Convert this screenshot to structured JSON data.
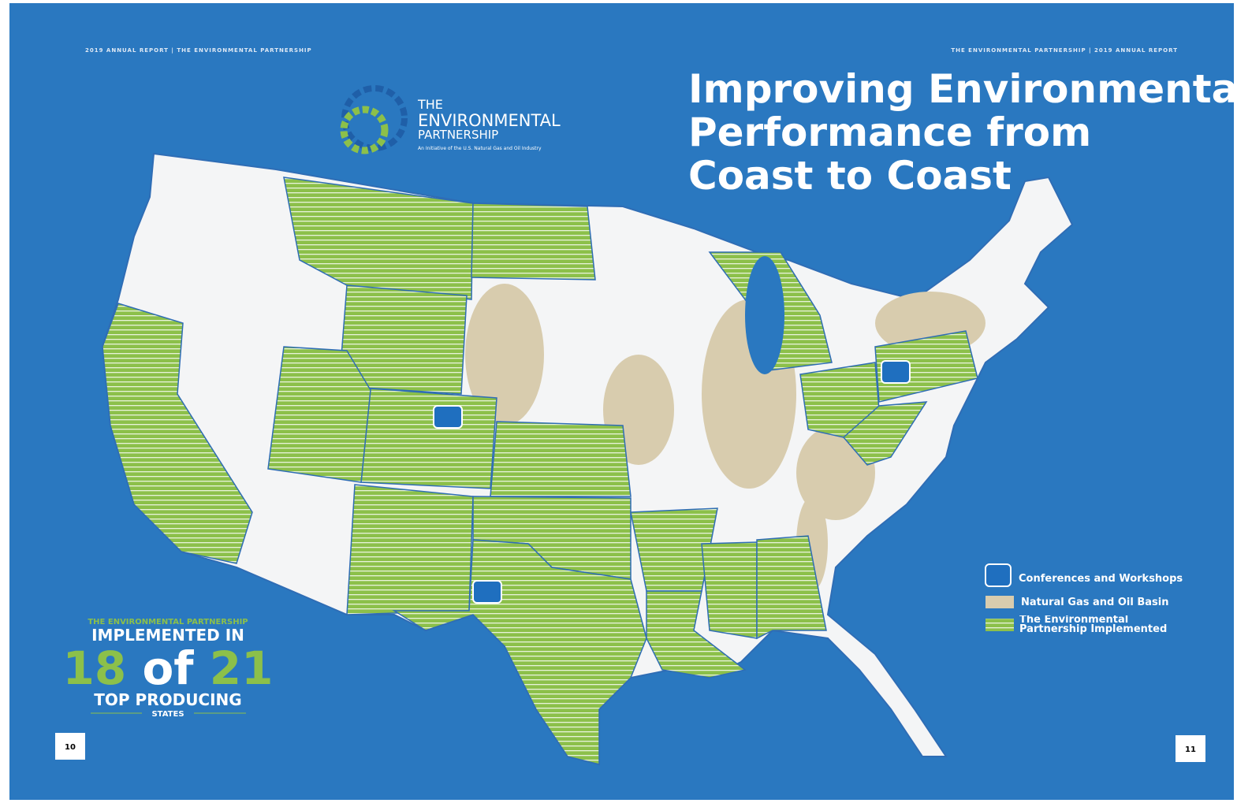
{
  "header": {
    "left": "2019 ANNUAL REPORT | THE ENVIRONMENTAL PARTNERSHIP",
    "right": "THE ENVIRONMENTAL PARTNERSHIP | 2019 ANNUAL REPORT"
  },
  "logo": {
    "line1": "THE",
    "line2": "ENVIRONMENTAL",
    "line3": "PARTNERSHIP",
    "tagline": "An Initiative of the U.S. Natural Gas and Oil Industry"
  },
  "title": [
    "Improving Environmental",
    "Performance from",
    "Coast to Coast"
  ],
  "stat": {
    "kicker": "THE ENVIRONMENTAL PARTNERSHIP",
    "line1": "IMPLEMENTED IN",
    "implemented": 18,
    "of": "of",
    "total": 21,
    "line2": "TOP PRODUCING",
    "line3": "STATES"
  },
  "legend": [
    "Conferences and Workshops",
    "Natural Gas and Oil Basin",
    "The Environmental Partnership Implemented"
  ],
  "pages": {
    "left": 10,
    "right": 11
  }
}
